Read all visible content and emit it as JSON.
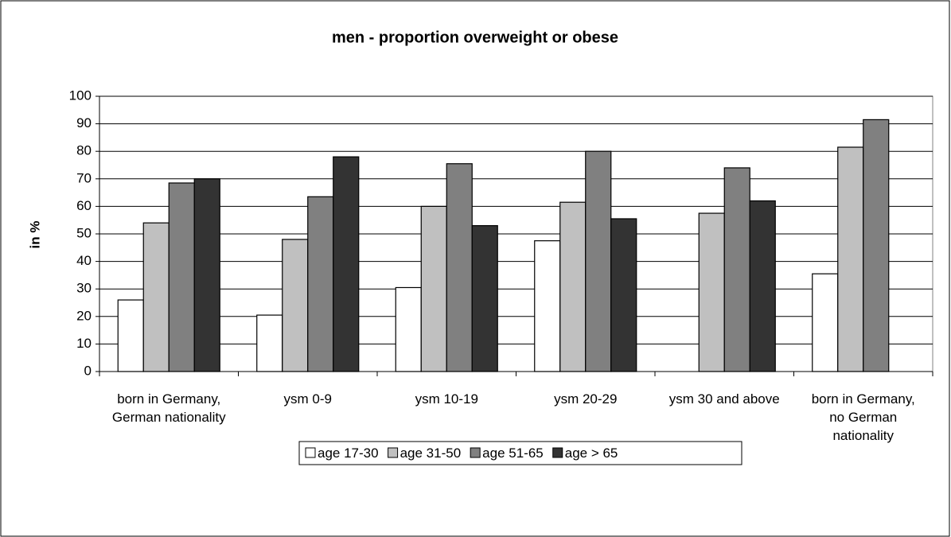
{
  "chart_data": {
    "type": "bar",
    "title": "men - proportion overweight or obese",
    "ylabel": "in %",
    "categories": [
      "born in Germany, German nationality",
      "ysm 0-9",
      "ysm 10-19",
      "ysm 20-29",
      "ysm 30 and above",
      "born in Germany, no German nationality"
    ],
    "series": [
      {
        "name": "age 17-30",
        "color": "#ffffff",
        "values": [
          26,
          20.5,
          30.5,
          47.5,
          null,
          35.5
        ]
      },
      {
        "name": "age 31-50",
        "color": "#c0c0c0",
        "values": [
          54,
          48,
          60,
          61.5,
          57.5,
          81.5
        ]
      },
      {
        "name": "age 51-65",
        "color": "#808080",
        "values": [
          68.5,
          63.5,
          75.5,
          80,
          74,
          91.5
        ]
      },
      {
        "name": "age > 65",
        "color": "#333333",
        "values": [
          70,
          78,
          53,
          55.5,
          62,
          null
        ]
      }
    ],
    "ylim": [
      0,
      100
    ],
    "yticks": [
      0,
      10,
      20,
      30,
      40,
      50,
      60,
      70,
      80,
      90,
      100
    ],
    "grid": true,
    "legend": "bottom"
  }
}
